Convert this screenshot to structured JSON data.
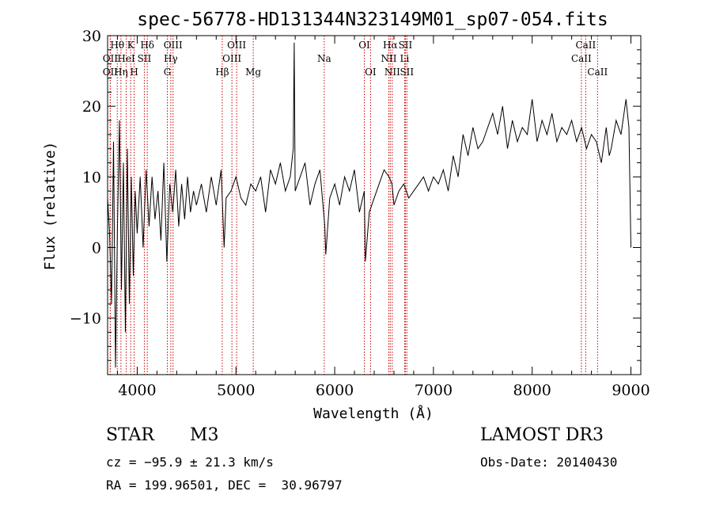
{
  "chart_data": {
    "type": "line",
    "title": "spec-56778-HD131344N323149M01_sp07-054.fits",
    "xlabel": "Wavelength (Å)",
    "ylabel": "Flux (relative)",
    "xlim": [
      3700,
      9100
    ],
    "ylim": [
      -18,
      30
    ],
    "xticks": [
      4000,
      5000,
      6000,
      7000,
      8000,
      9000
    ],
    "xtick_labels": [
      "4000",
      "5000",
      "6000",
      "7000",
      "8000",
      "9000"
    ],
    "yticks": [
      -10,
      0,
      10,
      20,
      30
    ],
    "ytick_labels": [
      "−10",
      "0",
      "10",
      "20",
      "30"
    ],
    "grid": false,
    "series": [
      {
        "name": "flux",
        "color": "#000000",
        "x": [
          3700,
          3720,
          3740,
          3760,
          3780,
          3800,
          3820,
          3840,
          3860,
          3880,
          3900,
          3920,
          3940,
          3960,
          3980,
          4000,
          4030,
          4060,
          4090,
          4120,
          4150,
          4180,
          4210,
          4240,
          4270,
          4300,
          4330,
          4360,
          4390,
          4420,
          4450,
          4480,
          4510,
          4540,
          4570,
          4600,
          4650,
          4700,
          4750,
          4800,
          4850,
          4880,
          4900,
          4950,
          5000,
          5050,
          5100,
          5150,
          5200,
          5250,
          5300,
          5350,
          5400,
          5450,
          5500,
          5550,
          5580,
          5590,
          5600,
          5650,
          5700,
          5750,
          5800,
          5850,
          5900,
          5910,
          5950,
          6000,
          6050,
          6100,
          6150,
          6200,
          6250,
          6300,
          6310,
          6350,
          6400,
          6450,
          6500,
          6550,
          6580,
          6600,
          6650,
          6700,
          6750,
          6800,
          6850,
          6900,
          6950,
          7000,
          7050,
          7100,
          7150,
          7200,
          7250,
          7300,
          7350,
          7400,
          7450,
          7500,
          7550,
          7600,
          7650,
          7700,
          7750,
          7800,
          7850,
          7900,
          7950,
          8000,
          8050,
          8100,
          8150,
          8200,
          8250,
          8300,
          8350,
          8400,
          8450,
          8500,
          8550,
          8600,
          8650,
          8700,
          8750,
          8780,
          8800,
          8850,
          8900,
          8950,
          8980,
          9000
        ],
        "values": [
          7,
          2,
          -8,
          15,
          -17,
          3,
          18,
          -6,
          12,
          -12,
          14,
          -8,
          10,
          -4,
          8,
          2,
          10,
          0,
          11,
          3,
          10,
          4,
          8,
          1,
          12,
          -2,
          9,
          5,
          11,
          3,
          9,
          4,
          10,
          5,
          8,
          6,
          9,
          5,
          10,
          6,
          11,
          0,
          7,
          8,
          10,
          7,
          6,
          9,
          8,
          10,
          5,
          11,
          9,
          12,
          8,
          10,
          14,
          29,
          8,
          10,
          12,
          6,
          9,
          11,
          3,
          -1,
          7,
          9,
          6,
          10,
          8,
          11,
          5,
          8,
          -2,
          5,
          7,
          9,
          11,
          10,
          9,
          6,
          8,
          9,
          7,
          8,
          9,
          10,
          8,
          10,
          9,
          11,
          8,
          13,
          10,
          16,
          13,
          17,
          14,
          15,
          17,
          19,
          16,
          20,
          14,
          18,
          15,
          17,
          16,
          21,
          15,
          18,
          16,
          19,
          15,
          17,
          16,
          18,
          15,
          17,
          14,
          16,
          15,
          12,
          17,
          13,
          14,
          18,
          16,
          21,
          17,
          0
        ]
      }
    ],
    "spectral_lines": [
      {
        "name": "Hθ",
        "wavelength": 3798,
        "row": 1
      },
      {
        "name": "OII",
        "wavelength": 3727,
        "row": 2
      },
      {
        "name": "OII",
        "wavelength": 3727,
        "row": 3
      },
      {
        "name": "HeI",
        "wavelength": 3889,
        "row": 2
      },
      {
        "name": "Hη",
        "wavelength": 3835,
        "row": 3
      },
      {
        "name": "K",
        "wavelength": 3934,
        "row": 1
      },
      {
        "name": "H",
        "wavelength": 3969,
        "row": 3
      },
      {
        "name": "Hδ",
        "wavelength": 4102,
        "row": 1
      },
      {
        "name": "SII",
        "wavelength": 4072,
        "row": 2
      },
      {
        "name": "OIII",
        "wavelength": 4363,
        "row": 1
      },
      {
        "name": "Hγ",
        "wavelength": 4340,
        "row": 2
      },
      {
        "name": "G",
        "wavelength": 4305,
        "row": 3
      },
      {
        "name": "OIII",
        "wavelength": 5007,
        "row": 1
      },
      {
        "name": "OIII",
        "wavelength": 4959,
        "row": 2
      },
      {
        "name": "Hβ",
        "wavelength": 4861,
        "row": 3
      },
      {
        "name": "Mg",
        "wavelength": 5175,
        "row": 3
      },
      {
        "name": "Na",
        "wavelength": 5894,
        "row": 2
      },
      {
        "name": "OI",
        "wavelength": 6300,
        "row": 1
      },
      {
        "name": "OI",
        "wavelength": 6363,
        "row": 3
      },
      {
        "name": "Hα",
        "wavelength": 6563,
        "row": 1
      },
      {
        "name": "SII",
        "wavelength": 6716,
        "row": 1
      },
      {
        "name": "NII",
        "wavelength": 6548,
        "row": 2
      },
      {
        "name": "Li",
        "wavelength": 6708,
        "row": 2
      },
      {
        "name": "NII",
        "wavelength": 6583,
        "row": 3
      },
      {
        "name": "SII",
        "wavelength": 6731,
        "row": 3
      },
      {
        "name": "CaII",
        "wavelength": 8542,
        "row": 1
      },
      {
        "name": "CaII",
        "wavelength": 8498,
        "row": 2
      },
      {
        "name": "CaII",
        "wavelength": 8662,
        "row": 3
      }
    ],
    "line_marker_color": "#cc0000"
  },
  "info": {
    "class_label": "STAR",
    "subclass_label": "M3",
    "cz_text": "cz = −95.9 ± 21.3 km/s",
    "coords_text": "RA = 199.96501, DEC =  30.96797",
    "survey_text": "LAMOST DR3",
    "obs_date_text": "Obs-Date: 20140430"
  }
}
